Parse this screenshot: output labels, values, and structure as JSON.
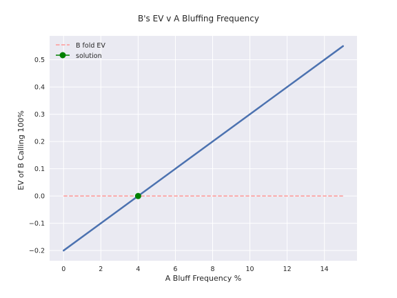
{
  "chart_data": {
    "type": "line",
    "title": "B's EV v A Bluffing Frequency",
    "xlabel": "A Bluff Frequency %",
    "ylabel": "EV of B Calling 100%",
    "xlim": [
      -0.75,
      15.75
    ],
    "ylim": [
      -0.2375,
      0.5875
    ],
    "xticks": [
      0,
      2,
      4,
      6,
      8,
      10,
      12,
      14
    ],
    "yticks": [
      -0.2,
      -0.1,
      0.0,
      0.1,
      0.2,
      0.3,
      0.4,
      0.5
    ],
    "xtick_labels": [
      "0",
      "2",
      "4",
      "6",
      "8",
      "10",
      "12",
      "14"
    ],
    "ytick_labels": [
      "−0.2",
      "−0.1",
      "0.0",
      "0.1",
      "0.2",
      "0.3",
      "0.4",
      "0.5"
    ],
    "grid": true,
    "legend_position": "top-left",
    "series": [
      {
        "name": "",
        "style": "solid",
        "color": "#4c72b0",
        "x": [
          0,
          15
        ],
        "y": [
          -0.2,
          0.55
        ]
      },
      {
        "name": "B fold EV",
        "style": "dashed",
        "color": "#ff9896",
        "x": [
          0,
          15
        ],
        "y": [
          0,
          0
        ]
      },
      {
        "name": "solution",
        "style": "marker",
        "color": "#008000",
        "x": [
          4
        ],
        "y": [
          0
        ]
      }
    ]
  }
}
